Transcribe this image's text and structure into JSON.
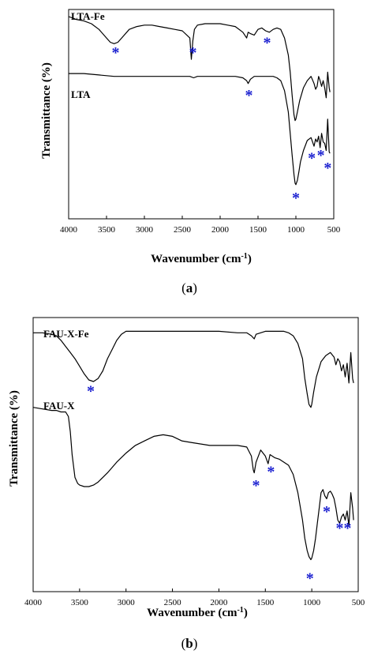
{
  "chart_data": [
    {
      "type": "line",
      "panel_label_prefix": "(",
      "panel_label_letter": "a",
      "panel_label_suffix": ")",
      "xlabel": "Wavenumber (cm",
      "xlabel_sup": "-1",
      "xlabel_close": ")",
      "ylabel": "Transmittance (%)",
      "xlim": [
        4000,
        500
      ],
      "x_ticks": [
        "4000",
        "3500",
        "3000",
        "2500",
        "2000",
        "1500",
        "1000",
        "500"
      ],
      "grid": false,
      "series": [
        {
          "name": "LTA-Fe",
          "color": "#000000",
          "x": [
            4000,
            3900,
            3800,
            3700,
            3600,
            3500,
            3450,
            3400,
            3350,
            3300,
            3200,
            3100,
            3000,
            2900,
            2800,
            2700,
            2600,
            2500,
            2400,
            2380,
            2360,
            2340,
            2300,
            2200,
            2100,
            2000,
            1900,
            1800,
            1700,
            1650,
            1630,
            1600,
            1550,
            1500,
            1450,
            1400,
            1350,
            1300,
            1250,
            1200,
            1150,
            1100,
            1075,
            1050,
            1025,
            1010,
            1000,
            980,
            950,
            900,
            850,
            800,
            760,
            740,
            720,
            700,
            680,
            660,
            640,
            620,
            600,
            580,
            560,
            550
          ],
          "y": [
            97,
            95,
            94,
            92,
            88,
            82,
            79,
            78,
            79,
            82,
            88,
            90,
            91,
            91,
            90,
            89,
            88,
            87,
            82,
            67,
            80,
            88,
            91,
            92,
            92,
            92,
            91,
            90,
            86,
            82,
            86,
            85,
            84,
            88,
            89,
            87,
            86,
            88,
            89,
            88,
            82,
            70,
            58,
            42,
            28,
            24,
            25,
            30,
            38,
            47,
            52,
            55,
            50,
            46,
            48,
            55,
            52,
            48,
            52,
            47,
            40,
            58,
            47,
            44
          ]
        },
        {
          "name": "LTA",
          "color": "#000000",
          "x": [
            4000,
            3800,
            3600,
            3400,
            3200,
            3000,
            2800,
            2600,
            2400,
            2350,
            2300,
            2200,
            2000,
            1800,
            1700,
            1650,
            1630,
            1600,
            1550,
            1500,
            1400,
            1300,
            1250,
            1200,
            1150,
            1100,
            1075,
            1050,
            1025,
            1010,
            1000,
            980,
            960,
            940,
            900,
            850,
            800,
            760,
            740,
            720,
            700,
            680,
            660,
            640,
            620,
            600,
            580,
            560,
            550
          ],
          "y": [
            57,
            57,
            56,
            55,
            55,
            55,
            55,
            55,
            55,
            54,
            55,
            55,
            55,
            55,
            54,
            52,
            50,
            53,
            55,
            55,
            55,
            55,
            54,
            52,
            45,
            30,
            15,
            0,
            -14,
            -20,
            -21,
            -18,
            -12,
            -5,
            3,
            10,
            12,
            6,
            11,
            9,
            13,
            5,
            15,
            9,
            8,
            3,
            25,
            2,
            1
          ]
        }
      ],
      "series_labels": [
        "LTA-Fe",
        "LTA"
      ],
      "markers": [
        {
          "label": "*",
          "x": 3380,
          "y": 72
        },
        {
          "label": "*",
          "x": 2360,
          "y": 72
        },
        {
          "label": "*",
          "x": 1380,
          "y": 79
        },
        {
          "label": "*",
          "x": 1620,
          "y": 42
        },
        {
          "label": "*",
          "x": 790,
          "y": -2
        },
        {
          "label": "*",
          "x": 670,
          "y": 0
        },
        {
          "label": "*",
          "x": 580,
          "y": -9
        },
        {
          "label": "*",
          "x": 1000,
          "y": -30
        }
      ],
      "ylim": [
        -45,
        102
      ]
    },
    {
      "type": "line",
      "panel_label_prefix": "(",
      "panel_label_letter": "b",
      "panel_label_suffix": ")",
      "xlabel": "Wavenumber (cm",
      "xlabel_sup": "-1",
      "xlabel_close": ")",
      "ylabel": "Transmittance (%)",
      "xlim": [
        4000,
        500
      ],
      "x_ticks": [
        "4000",
        "3500",
        "3000",
        "2500",
        "2000",
        "1500",
        "1000",
        "500"
      ],
      "grid": false,
      "series": [
        {
          "name": "FAU-X-Fe",
          "color": "#000000",
          "x": [
            4000,
            3900,
            3800,
            3750,
            3700,
            3650,
            3600,
            3550,
            3500,
            3450,
            3400,
            3350,
            3300,
            3250,
            3200,
            3150,
            3100,
            3050,
            3000,
            2950,
            2800,
            2600,
            2400,
            2200,
            2000,
            1800,
            1700,
            1650,
            1620,
            1600,
            1550,
            1500,
            1400,
            1300,
            1250,
            1200,
            1150,
            1100,
            1075,
            1050,
            1030,
            1010,
            1000,
            980,
            950,
            900,
            850,
            800,
            760,
            740,
            720,
            700,
            680,
            660,
            640,
            620,
            600,
            580,
            560,
            550
          ],
          "y": [
            95,
            95,
            94,
            93,
            90,
            86,
            82,
            78,
            73,
            68,
            64,
            63,
            65,
            70,
            78,
            84,
            90,
            94,
            96,
            96,
            96,
            96,
            96,
            96,
            96,
            95,
            95,
            93,
            91,
            94,
            95,
            96,
            96,
            96,
            95,
            93,
            88,
            78,
            65,
            55,
            48,
            46,
            48,
            56,
            66,
            76,
            80,
            82,
            79,
            74,
            78,
            76,
            70,
            74,
            66,
            75,
            62,
            82,
            65,
            62
          ]
        },
        {
          "name": "FAU-X",
          "color": "#000000",
          "x": [
            4000,
            3900,
            3800,
            3750,
            3700,
            3650,
            3620,
            3600,
            3580,
            3550,
            3520,
            3500,
            3450,
            3400,
            3350,
            3300,
            3250,
            3200,
            3100,
            3000,
            2900,
            2800,
            2700,
            2600,
            2500,
            2400,
            2300,
            2200,
            2100,
            2000,
            1900,
            1800,
            1700,
            1650,
            1630,
            1620,
            1600,
            1550,
            1500,
            1470,
            1450,
            1400,
            1350,
            1300,
            1250,
            1200,
            1150,
            1100,
            1075,
            1050,
            1030,
            1010,
            1000,
            980,
            960,
            940,
            920,
            900,
            880,
            860,
            840,
            820,
            800,
            780,
            760,
            740,
            720,
            700,
            680,
            660,
            640,
            620,
            600,
            580,
            560,
            550
          ],
          "y": [
            46,
            45,
            44,
            44,
            43,
            43,
            40,
            30,
            15,
            0,
            -4,
            -5,
            -6,
            -6,
            -5,
            -3,
            0,
            3,
            10,
            16,
            21,
            24,
            27,
            28,
            27,
            24,
            23,
            22,
            21,
            21,
            21,
            21,
            20,
            14,
            5,
            3,
            10,
            18,
            14,
            9,
            15,
            13,
            12,
            10,
            8,
            2,
            -10,
            -28,
            -40,
            -48,
            -52,
            -54,
            -53,
            -48,
            -40,
            -30,
            -20,
            -10,
            -8,
            -12,
            -14,
            -10,
            -9,
            -11,
            -14,
            -20,
            -28,
            -30,
            -26,
            -24,
            -28,
            -22,
            -32,
            -10,
            -20,
            -28
          ]
        }
      ],
      "series_labels": [
        "FAU-X-Fe",
        "FAU-X"
      ],
      "markers": [
        {
          "label": "*",
          "x": 3380,
          "y": 57
        },
        {
          "label": "*",
          "x": 1600,
          "y": -5
        },
        {
          "label": "*",
          "x": 1440,
          "y": 4
        },
        {
          "label": "*",
          "x": 840,
          "y": -22
        },
        {
          "label": "*",
          "x": 700,
          "y": -33
        },
        {
          "label": "*",
          "x": 615,
          "y": -33
        },
        {
          "label": "*",
          "x": 1020,
          "y": -66
        }
      ],
      "ylim": [
        -75,
        105
      ]
    }
  ]
}
